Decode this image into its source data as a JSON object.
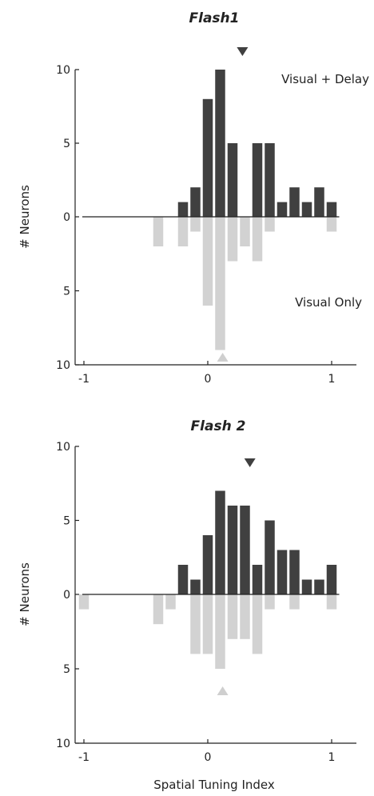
{
  "colors": {
    "upper": "#404040",
    "lower": "#d2d2d2",
    "axis": "#222222",
    "marker_upper": "#404040",
    "marker_lower": "#cfcfcf"
  },
  "labels": {
    "ylabel": "# Neurons",
    "xlabel": "Spatial Tuning Index"
  },
  "chart_data": [
    {
      "type": "bar",
      "title": "Flash1",
      "xlabel": "Spatial Tuning Index",
      "ylabel": "# Neurons",
      "xlim": [
        -1.1,
        1.1
      ],
      "ylim_upper": [
        0,
        10
      ],
      "ylim_lower": [
        0,
        10
      ],
      "xticks": [
        "-1",
        "0",
        "1"
      ],
      "yticks": [
        "10",
        "5",
        "0",
        "5",
        "10"
      ],
      "bin_centers": [
        -1.0,
        -0.9,
        -0.8,
        -0.7,
        -0.6,
        -0.5,
        -0.4,
        -0.3,
        -0.2,
        -0.1,
        0.0,
        0.1,
        0.2,
        0.3,
        0.4,
        0.5,
        0.6,
        0.7,
        0.8,
        0.9,
        1.0
      ],
      "series": [
        {
          "name": "Visual + Delay",
          "direction": "up",
          "values": [
            0,
            0,
            0,
            0,
            0,
            0,
            0,
            0,
            1,
            2,
            8,
            10,
            5,
            0,
            5,
            5,
            1,
            2,
            1,
            2,
            1
          ]
        },
        {
          "name": "Visual Only",
          "direction": "down",
          "values": [
            0,
            0,
            0,
            0,
            0,
            0,
            2,
            0,
            2,
            1,
            6,
            9,
            3,
            2,
            3,
            1,
            0,
            0,
            0,
            0,
            1
          ]
        }
      ],
      "markers": [
        {
          "series": "Visual + Delay",
          "x": 0.28,
          "shape": "down-triangle"
        },
        {
          "series": "Visual Only",
          "x": 0.12,
          "shape": "up-triangle"
        }
      ],
      "annotations": [
        "Visual + Delay",
        "Visual Only"
      ]
    },
    {
      "type": "bar",
      "title": "Flash 2",
      "xlabel": "Spatial Tuning Index",
      "ylabel": "# Neurons",
      "xlim": [
        -1.1,
        1.1
      ],
      "ylim_upper": [
        0,
        10
      ],
      "ylim_lower": [
        0,
        10
      ],
      "xticks": [
        "-1",
        "0",
        "1"
      ],
      "yticks": [
        "10",
        "5",
        "0",
        "5",
        "10"
      ],
      "bin_centers": [
        -1.0,
        -0.9,
        -0.8,
        -0.7,
        -0.6,
        -0.5,
        -0.4,
        -0.3,
        -0.2,
        -0.1,
        0.0,
        0.1,
        0.2,
        0.3,
        0.4,
        0.5,
        0.6,
        0.7,
        0.8,
        0.9,
        1.0
      ],
      "series": [
        {
          "name": "",
          "direction": "up",
          "values": [
            0,
            0,
            0,
            0,
            0,
            0,
            0,
            0,
            2,
            1,
            4,
            7,
            6,
            6,
            2,
            5,
            3,
            3,
            1,
            1,
            2
          ]
        },
        {
          "name": "",
          "direction": "down",
          "values": [
            1,
            0,
            0,
            0,
            0,
            0,
            2,
            1,
            0,
            4,
            4,
            5,
            3,
            3,
            4,
            1,
            0,
            1,
            0,
            0,
            1
          ]
        }
      ],
      "markers": [
        {
          "series": "up",
          "x": 0.34,
          "shape": "down-triangle"
        },
        {
          "series": "down",
          "x": 0.12,
          "shape": "up-triangle"
        }
      ],
      "annotations": []
    }
  ]
}
